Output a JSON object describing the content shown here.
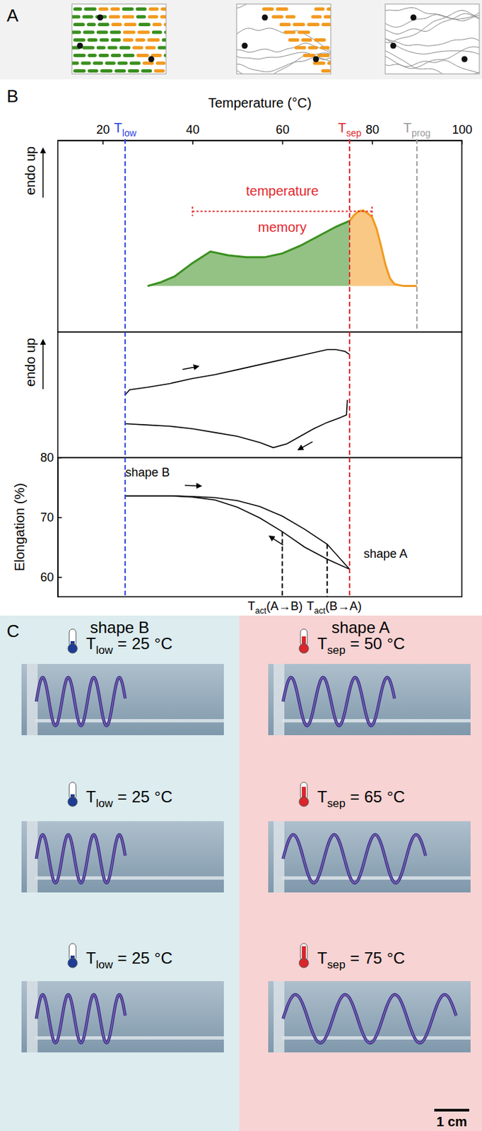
{
  "panels": [
    "A",
    "B",
    "C"
  ],
  "chart_data": [
    {
      "type": "area",
      "x_label": "Temperature (°C)",
      "y_label": "endo up",
      "xlim": [
        10,
        100
      ],
      "xticks": [
        20,
        40,
        60,
        80,
        100
      ],
      "ylim": [
        0,
        10
      ],
      "tick_labels": "x",
      "baseline": 2.4,
      "series": [
        {
          "color": "#3a8f1f",
          "x": [
            30,
            33,
            36,
            40,
            44,
            48,
            52,
            56,
            60,
            64,
            68,
            72,
            75
          ],
          "values": [
            2.4,
            2.6,
            2.9,
            3.6,
            4.2,
            4.0,
            3.9,
            3.9,
            4.1,
            4.5,
            5.0,
            5.5,
            5.8
          ]
        },
        {
          "color": "#f29a1f",
          "x": [
            75,
            76,
            77,
            78,
            79,
            80,
            81,
            82,
            83,
            84,
            85,
            87,
            90
          ],
          "values": [
            5.8,
            6.1,
            6.3,
            6.35,
            6.2,
            6.0,
            5.4,
            4.5,
            3.5,
            2.8,
            2.5,
            2.4,
            2.4
          ]
        }
      ],
      "vlines": [
        {
          "x": 25,
          "color": "#2b3ee0",
          "label": "T",
          "sub": "low"
        },
        {
          "x": 75,
          "color": "#e3262b",
          "label": "T",
          "sub": "sep"
        },
        {
          "x": 90,
          "color": "#9a9a9a",
          "label": "T",
          "sub": "prog"
        }
      ],
      "bracket": {
        "x": [
          40,
          80
        ],
        "y": 6.3,
        "color": "#e3262b"
      },
      "annotations": [
        {
          "text": "temperature",
          "x": 60,
          "y": 7.3,
          "color": "#e3262b"
        },
        {
          "text": "memory",
          "x": 60,
          "y": 5.4,
          "color": "#e3262b"
        }
      ]
    },
    {
      "type": "line",
      "y_label": "endo up",
      "xlim": [
        10,
        100
      ],
      "ylim": [
        0,
        10
      ],
      "tick_labels": false,
      "series": [
        {
          "color": "#000000",
          "x": [
            25,
            26,
            30,
            35,
            40,
            45,
            50,
            55,
            60,
            65,
            70,
            72,
            74,
            75
          ],
          "values": [
            5.0,
            5.4,
            5.6,
            5.9,
            6.3,
            6.6,
            7.0,
            7.4,
            7.8,
            8.2,
            8.6,
            8.6,
            8.45,
            8.2
          ]
        },
        {
          "color": "#000000",
          "x": [
            74.5,
            74.3,
            73,
            70,
            67,
            64,
            61,
            58,
            55,
            50,
            45,
            40,
            35,
            30,
            25
          ],
          "values": [
            4.6,
            3.4,
            3.2,
            2.8,
            2.3,
            1.7,
            1.1,
            0.8,
            1.2,
            1.7,
            2.0,
            2.3,
            2.5,
            2.6,
            2.7
          ]
        }
      ],
      "vlines": [
        {
          "x": 25,
          "color": "#2b3ee0"
        },
        {
          "x": 75,
          "color": "#e3262b"
        }
      ]
    },
    {
      "type": "line",
      "y_label": "Elongation (%)",
      "xlim": [
        10,
        100
      ],
      "ylim": [
        56.7,
        80
      ],
      "yticks": [
        60,
        70,
        80
      ],
      "tick_labels": "y",
      "series": [
        {
          "color": "#000000",
          "x": [
            25,
            30,
            35,
            40,
            45,
            50,
            55,
            60,
            65,
            70,
            75
          ],
          "values": [
            73.6,
            73.6,
            73.6,
            73.5,
            73.3,
            72.8,
            71.8,
            70.2,
            68.0,
            65.5,
            61.3
          ]
        },
        {
          "color": "#000000",
          "x": [
            75,
            70,
            65,
            60,
            55,
            50,
            45,
            40,
            35,
            30,
            25
          ],
          "values": [
            61.3,
            63.0,
            65.0,
            67.6,
            69.9,
            71.7,
            72.9,
            73.4,
            73.6,
            73.6,
            73.6
          ]
        }
      ],
      "vlines": [
        {
          "x": 25,
          "color": "#2b3ee0"
        },
        {
          "x": 75,
          "color": "#e3262b"
        },
        {
          "x": 60,
          "y": 67.6,
          "color": "#000000",
          "label": "T",
          "sub": "act",
          "suffix": "(A→B)"
        },
        {
          "x": 70,
          "y": 65.5,
          "color": "#000000",
          "label": "T",
          "sub": "act",
          "suffix": "(B→A)"
        }
      ],
      "annotations": [
        {
          "text": "shape B",
          "x": 30,
          "y": 77.4,
          "color": "#000000"
        },
        {
          "text": "shape A",
          "x": 83,
          "y": 63.8,
          "color": "#000000"
        }
      ]
    }
  ],
  "photos": {
    "columns": [
      {
        "title": "shape B",
        "color": "#1c3c96",
        "rows": [
          {
            "label": "T",
            "sub": "low",
            "relation": "=",
            "value": 25,
            "unit": "°C"
          },
          {
            "label": "T",
            "sub": "low",
            "relation": "=",
            "value": 25,
            "unit": "°C"
          },
          {
            "label": "T",
            "sub": "low",
            "relation": "=",
            "value": 25,
            "unit": "°C"
          }
        ]
      },
      {
        "title": "shape A",
        "color": "#d9262b",
        "rows": [
          {
            "label": "T",
            "sub": "sep",
            "relation": "=",
            "value": 50,
            "unit": "°C"
          },
          {
            "label": "T",
            "sub": "sep",
            "relation": "=",
            "value": 65,
            "unit": "°C"
          },
          {
            "label": "T",
            "sub": "sep",
            "relation": "=",
            "value": 75,
            "unit": "°C"
          }
        ]
      }
    ],
    "scale_bar": "1 cm"
  }
}
